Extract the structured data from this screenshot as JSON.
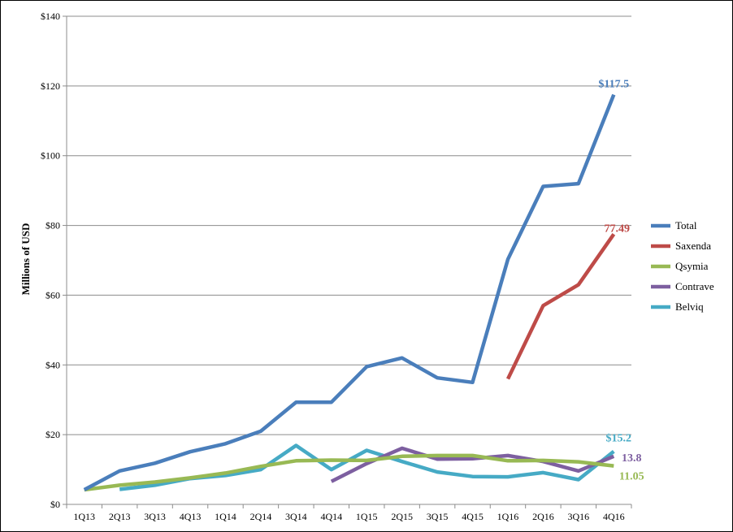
{
  "chart_data": {
    "type": "line",
    "title": "",
    "xlabel": "",
    "ylabel": "Millions of USD",
    "ylim": [
      0,
      140
    ],
    "yticks": [
      0,
      20,
      40,
      60,
      80,
      100,
      120,
      140
    ],
    "ytick_labels": [
      "$0",
      "$20",
      "$40",
      "$60",
      "$80",
      "$100",
      "$120",
      "$140"
    ],
    "categories": [
      "1Q13",
      "2Q13",
      "3Q13",
      "4Q13",
      "1Q14",
      "2Q14",
      "3Q14",
      "4Q14",
      "1Q15",
      "2Q15",
      "3Q15",
      "4Q15",
      "1Q16",
      "2Q16",
      "3Q16",
      "4Q16"
    ],
    "grid": true,
    "legend_position": "right",
    "series": [
      {
        "name": "Total",
        "color": "#4a7ebb",
        "values": [
          4.2,
          9.6,
          11.8,
          15.1,
          17.4,
          21.0,
          29.3,
          29.3,
          39.5,
          42.0,
          36.3,
          35.0,
          70.3,
          91.2,
          92.0,
          117.5
        ],
        "end_label": "$117.5"
      },
      {
        "name": "Saxenda",
        "color": "#be4b48",
        "values": [
          null,
          null,
          null,
          null,
          null,
          null,
          null,
          null,
          null,
          null,
          null,
          null,
          36.0,
          57.0,
          63.0,
          77.49
        ],
        "end_label": "77.49"
      },
      {
        "name": "Qsymia",
        "color": "#98b954",
        "values": [
          4.2,
          5.5,
          6.4,
          7.6,
          9.0,
          10.9,
          12.5,
          12.7,
          12.6,
          13.8,
          14.0,
          14.0,
          12.5,
          12.6,
          12.2,
          11.05
        ],
        "end_label": "11.05"
      },
      {
        "name": "Contrave",
        "color": "#7d5fa0",
        "values": [
          null,
          null,
          null,
          null,
          null,
          null,
          null,
          6.6,
          11.7,
          16.1,
          13.0,
          13.1,
          14.0,
          12.3,
          9.6,
          13.8
        ],
        "end_label": "13.8"
      },
      {
        "name": "Belviq",
        "color": "#46aac5",
        "values": [
          null,
          4.3,
          5.5,
          7.4,
          8.3,
          10.0,
          16.9,
          10.0,
          15.5,
          12.3,
          9.3,
          8.0,
          7.9,
          9.1,
          7.1,
          15.2
        ],
        "end_label": "$15.2"
      }
    ]
  }
}
